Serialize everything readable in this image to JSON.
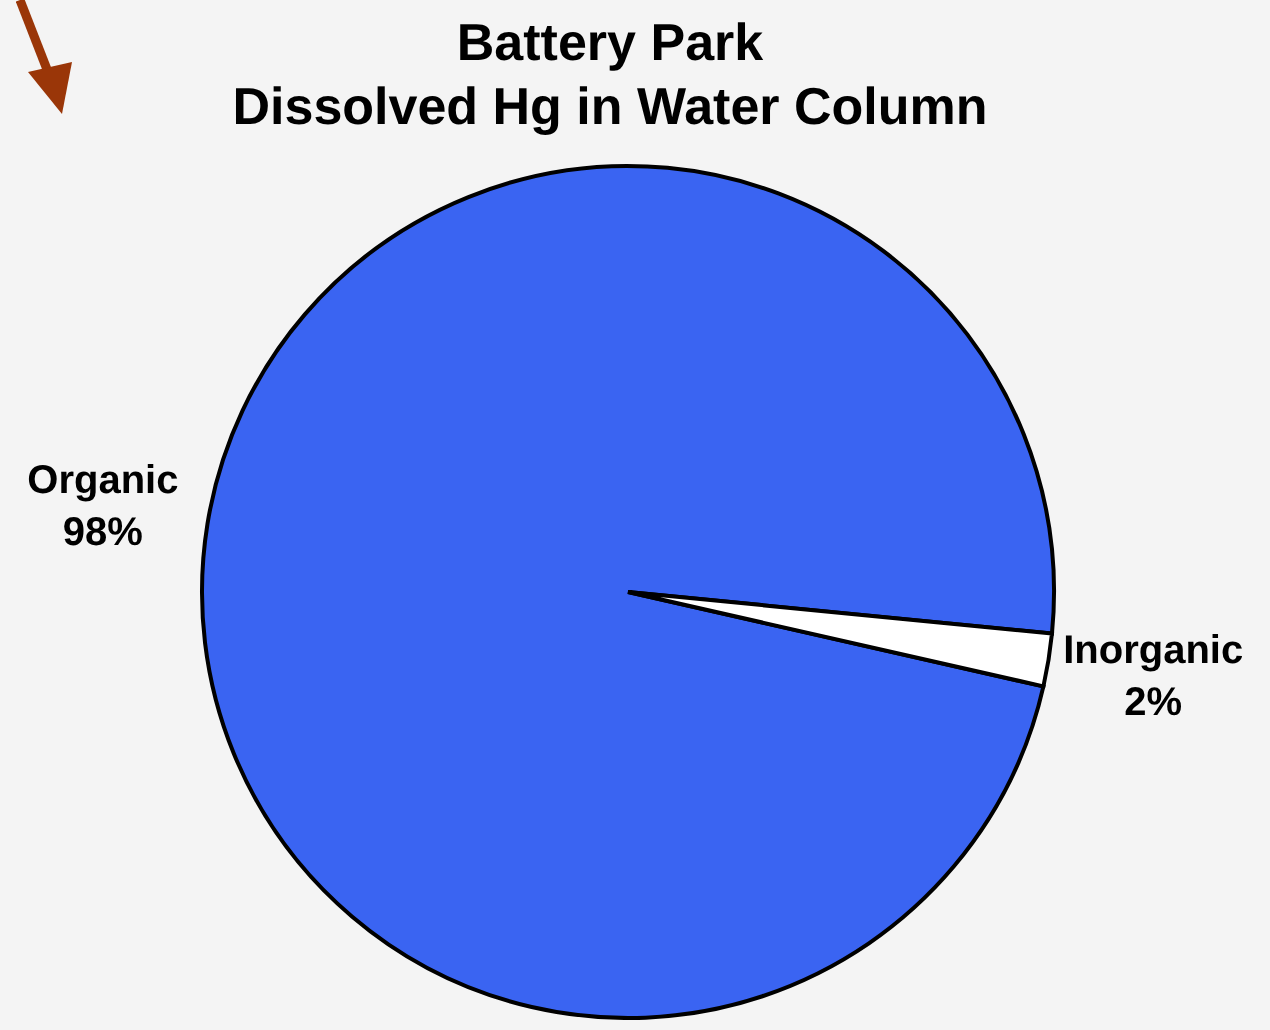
{
  "chart_data": {
    "type": "pie",
    "title": "Battery Park",
    "subtitle": "Dissolved Hg in Water Column",
    "categories": [
      "Organic",
      "Inorganic"
    ],
    "values": [
      98,
      2
    ],
    "colors": [
      "#3a64f2",
      "#ffffff"
    ],
    "value_labels": [
      "98%",
      "2%"
    ]
  }
}
